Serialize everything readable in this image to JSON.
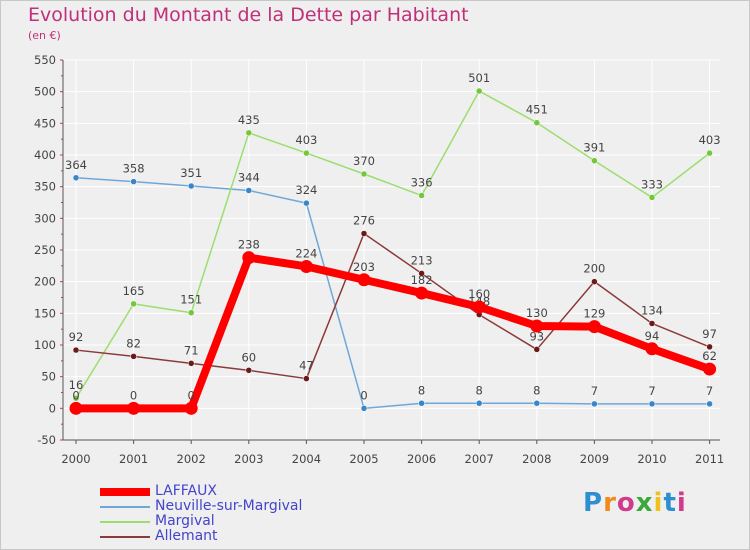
{
  "header": {
    "title": "Evolution du Montant de la Dette par Habitant",
    "subtitle": "(en €)"
  },
  "colors": {
    "title": "#c0307a",
    "grid": "#ffffff",
    "axis": "#555555",
    "tick_text": "#444444",
    "legend_text": "#4444cc"
  },
  "logo": {
    "text": "Proxiti",
    "letter_colors": [
      "#2e8fd0",
      "#f08a1a",
      "#d23a8e",
      "#3aa83a",
      "#f0c020",
      "#2e8fd0",
      "#d23a8e"
    ]
  },
  "chart_data": {
    "type": "line",
    "title": "Evolution du Montant de la Dette par Habitant",
    "subtitle": "(en €)",
    "xlabel": "",
    "ylabel": "",
    "ylim": [
      -50,
      550
    ],
    "ytick_step": 50,
    "y_ticks": [
      "-50",
      "0",
      "50",
      "100",
      "150",
      "200",
      "250",
      "300",
      "350",
      "400",
      "450",
      "500",
      "550"
    ],
    "x": [
      "2000",
      "2001",
      "2002",
      "2003",
      "2004",
      "2005",
      "2006",
      "2007",
      "2008",
      "2009",
      "2010",
      "2011"
    ],
    "grid": true,
    "legend_position": "bottom-left",
    "series": [
      {
        "name": "LAFFAUX",
        "color": "#ff0000",
        "marker": "#ff0000",
        "width": 8,
        "values": [
          0,
          0,
          0,
          238,
          224,
          203,
          182,
          160,
          130,
          129,
          94,
          62
        ]
      },
      {
        "name": "Neuville-sur-Margival",
        "color": "#6fa8d8",
        "marker": "#3a85c8",
        "width": 1.5,
        "values": [
          364,
          358,
          351,
          344,
          324,
          0,
          8,
          8,
          8,
          7,
          7,
          7
        ]
      },
      {
        "name": "Margival",
        "color": "#9bde6e",
        "marker": "#72c83a",
        "width": 1.5,
        "values": [
          16,
          165,
          151,
          435,
          403,
          370,
          336,
          501,
          451,
          391,
          333,
          403
        ]
      },
      {
        "name": "Allemant",
        "color": "#8b3a3a",
        "marker": "#6b1a1a",
        "width": 1.5,
        "values": [
          92,
          82,
          71,
          60,
          47,
          276,
          213,
          148,
          93,
          200,
          134,
          97
        ]
      }
    ]
  }
}
